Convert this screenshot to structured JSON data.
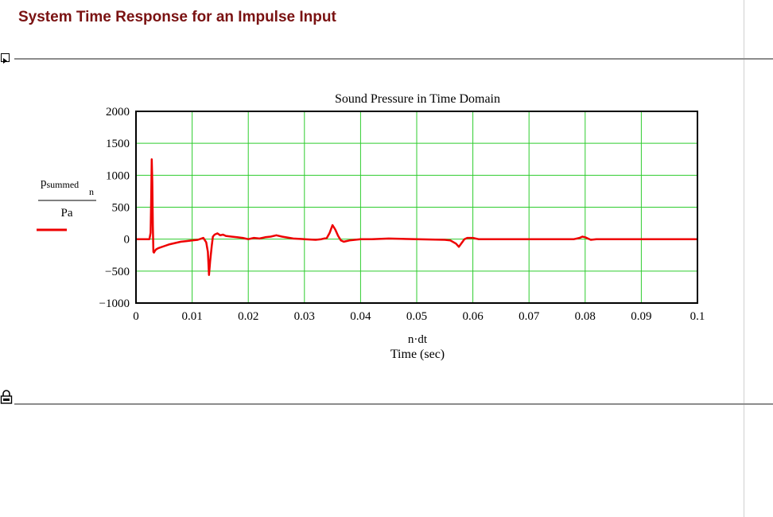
{
  "worksheet": {
    "heading": "System Time Response for an Impulse Input",
    "toggle_icon": "triangle-right-icon",
    "lock_icon": "lock-icon"
  },
  "chart_data": {
    "type": "line",
    "title": "Sound Pressure in Time Domain",
    "ylabel": {
      "numerator": "p",
      "numerator_sub": "summed",
      "numerator_index": "n",
      "denominator": "Pa"
    },
    "xlabel_expr": "n·dt",
    "xlabel": "Time (sec)",
    "xlim": [
      0,
      0.1
    ],
    "ylim": [
      -1000,
      2000
    ],
    "xticks": [
      "0",
      "0.01",
      "0.02",
      "0.03",
      "0.04",
      "0.05",
      "0.06",
      "0.07",
      "0.08",
      "0.09",
      "0.1"
    ],
    "yticks": [
      "2000",
      "1500",
      "1000",
      "500",
      "0",
      "−500",
      "−1000"
    ],
    "grid": true,
    "grid_color": "#2ecc2e",
    "series": [
      {
        "color": "#ee0000",
        "x": [
          0,
          0.0024,
          0.0026,
          0.0027,
          0.0028,
          0.0029,
          0.003,
          0.0031,
          0.0032,
          0.0034,
          0.0036,
          0.004,
          0.005,
          0.006,
          0.007,
          0.008,
          0.009,
          0.01,
          0.011,
          0.012,
          0.0125,
          0.0128,
          0.013,
          0.0132,
          0.0135,
          0.0137,
          0.014,
          0.0145,
          0.015,
          0.0155,
          0.016,
          0.017,
          0.018,
          0.019,
          0.02,
          0.021,
          0.022,
          0.023,
          0.024,
          0.025,
          0.026,
          0.028,
          0.03,
          0.032,
          0.033,
          0.034,
          0.0345,
          0.035,
          0.0355,
          0.036,
          0.0365,
          0.037,
          0.0375,
          0.038,
          0.039,
          0.04,
          0.042,
          0.045,
          0.05,
          0.055,
          0.056,
          0.057,
          0.0575,
          0.058,
          0.0585,
          0.059,
          0.06,
          0.061,
          0.062,
          0.065,
          0.07,
          0.075,
          0.078,
          0.079,
          0.0795,
          0.08,
          0.0805,
          0.081,
          0.082,
          0.085,
          0.09,
          0.095,
          0.1
        ],
        "y": [
          0,
          0,
          100,
          600,
          1250,
          900,
          200,
          -200,
          -210,
          -180,
          -160,
          -140,
          -110,
          -80,
          -60,
          -40,
          -30,
          -20,
          -10,
          20,
          -50,
          -200,
          -560,
          -350,
          -100,
          40,
          70,
          90,
          60,
          70,
          50,
          40,
          30,
          20,
          0,
          20,
          10,
          30,
          40,
          60,
          40,
          10,
          0,
          -10,
          0,
          20,
          100,
          220,
          150,
          50,
          -20,
          -40,
          -30,
          -20,
          -10,
          0,
          0,
          10,
          0,
          -10,
          -20,
          -70,
          -120,
          -60,
          0,
          20,
          20,
          0,
          0,
          0,
          0,
          0,
          0,
          20,
          40,
          30,
          10,
          -10,
          0,
          0,
          0,
          0,
          0
        ]
      }
    ]
  }
}
